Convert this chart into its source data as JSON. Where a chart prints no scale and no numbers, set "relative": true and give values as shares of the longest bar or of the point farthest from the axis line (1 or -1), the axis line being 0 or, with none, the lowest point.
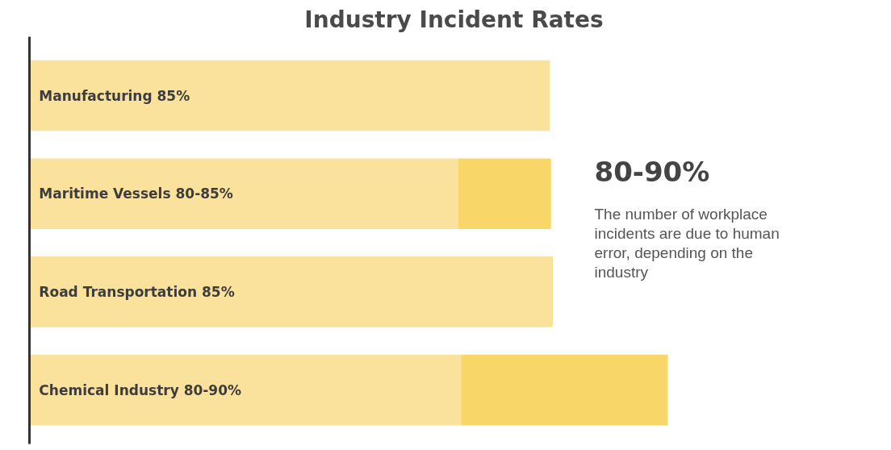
{
  "chart_data": {
    "type": "bar",
    "orientation": "horizontal",
    "stacked": true,
    "relative": true,
    "title": "Industry Incident Rates",
    "categories": [
      "Manufacturing 85%",
      "Maritime Vessels 80-85%",
      "Road Transportation 85%",
      "Chemical Industry 80-90%"
    ],
    "series": [
      {
        "color": "#fbe29c",
        "values": [
          0.815,
          0.672,
          0.82,
          0.676
        ]
      },
      {
        "color": "#f9d668",
        "values": [
          null,
          0.145,
          null,
          0.324
        ]
      }
    ],
    "annotations": [
      "80-90%",
      "The number of workplace incidents are due to human error, depending on the industry"
    ]
  }
}
